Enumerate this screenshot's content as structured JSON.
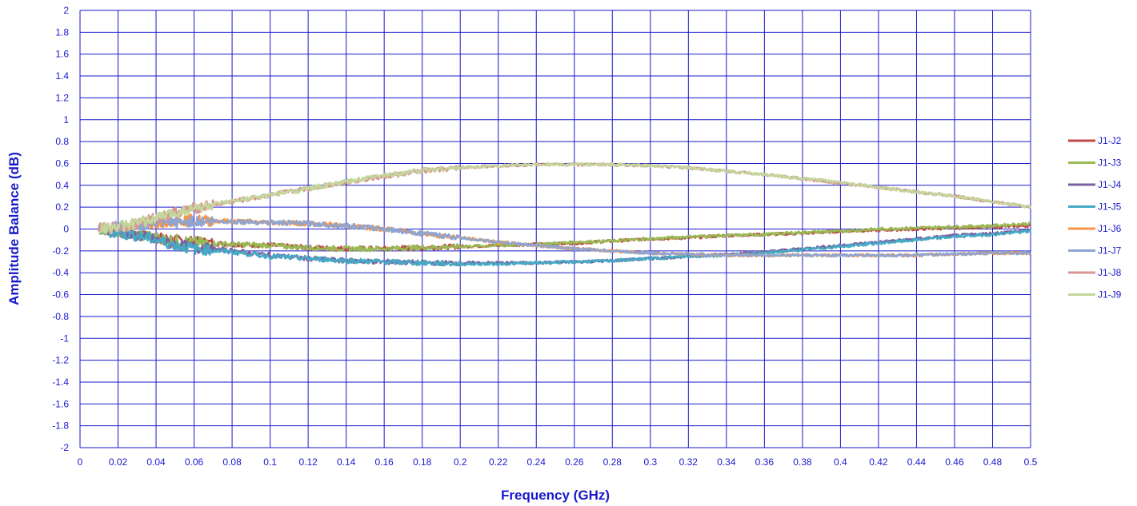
{
  "chart_data": {
    "type": "line",
    "title": "",
    "xlabel": "Frequency (GHz)",
    "ylabel": "Amplitude Balance (dB)",
    "xlim": [
      0,
      0.5
    ],
    "ylim": [
      -2,
      2
    ],
    "x_ticks": [
      "0",
      "0.02",
      "0.04",
      "0.06",
      "0.08",
      "0.1",
      "0.12",
      "0.14",
      "0.16",
      "0.18",
      "0.2",
      "0.22",
      "0.24",
      "0.26",
      "0.28",
      "0.3",
      "0.32",
      "0.34",
      "0.36",
      "0.38",
      "0.4",
      "0.42",
      "0.44",
      "0.46",
      "0.48",
      "0.5"
    ],
    "y_ticks": [
      "2",
      "1.8",
      "1.6",
      "1.4",
      "1.2",
      "1",
      "0.8",
      "0.6",
      "0.4",
      "0.2",
      "0",
      "-0.2",
      "-0.4",
      "-0.6",
      "-0.8",
      "-1",
      "-1.2",
      "-1.4",
      "-1.6",
      "-1.8",
      "-2"
    ],
    "grid": true,
    "grid_color": "#1a1acc",
    "legend_position": "right",
    "x": [
      0.01,
      0.02,
      0.03,
      0.04,
      0.05,
      0.06,
      0.08,
      0.1,
      0.12,
      0.14,
      0.16,
      0.18,
      0.2,
      0.22,
      0.24,
      0.26,
      0.28,
      0.3,
      0.32,
      0.34,
      0.36,
      0.38,
      0.4,
      0.42,
      0.44,
      0.46,
      0.48,
      0.5
    ],
    "series": [
      {
        "name": "J1-J2",
        "color": "#be4b48",
        "values": [
          0.0,
          -0.02,
          -0.05,
          -0.08,
          -0.1,
          -0.12,
          -0.14,
          -0.15,
          -0.17,
          -0.18,
          -0.18,
          -0.17,
          -0.16,
          -0.15,
          -0.14,
          -0.13,
          -0.11,
          -0.09,
          -0.08,
          -0.06,
          -0.05,
          -0.04,
          -0.02,
          -0.01,
          0.0,
          0.01,
          0.02,
          0.03
        ]
      },
      {
        "name": "J1-J3",
        "color": "#98b954",
        "values": [
          0.0,
          -0.02,
          -0.05,
          -0.08,
          -0.1,
          -0.12,
          -0.14,
          -0.15,
          -0.17,
          -0.18,
          -0.18,
          -0.17,
          -0.16,
          -0.15,
          -0.14,
          -0.12,
          -0.11,
          -0.09,
          -0.07,
          -0.06,
          -0.05,
          -0.03,
          -0.02,
          0.0,
          0.01,
          0.02,
          0.03,
          0.05
        ]
      },
      {
        "name": "J1-J4",
        "color": "#7d60a0",
        "values": [
          0.0,
          -0.04,
          -0.06,
          -0.1,
          -0.14,
          -0.17,
          -0.2,
          -0.24,
          -0.27,
          -0.29,
          -0.3,
          -0.31,
          -0.31,
          -0.31,
          -0.31,
          -0.3,
          -0.29,
          -0.27,
          -0.25,
          -0.23,
          -0.21,
          -0.18,
          -0.15,
          -0.12,
          -0.09,
          -0.06,
          -0.04,
          -0.01
        ]
      },
      {
        "name": "J1-J5",
        "color": "#46aac5",
        "values": [
          0.0,
          -0.04,
          -0.06,
          -0.1,
          -0.15,
          -0.18,
          -0.21,
          -0.25,
          -0.27,
          -0.29,
          -0.3,
          -0.31,
          -0.32,
          -0.32,
          -0.31,
          -0.3,
          -0.29,
          -0.27,
          -0.25,
          -0.24,
          -0.22,
          -0.19,
          -0.16,
          -0.13,
          -0.1,
          -0.07,
          -0.05,
          -0.02
        ]
      },
      {
        "name": "J1-J6",
        "color": "#f79646",
        "values": [
          0.0,
          0.02,
          0.04,
          0.06,
          0.08,
          0.08,
          0.07,
          0.06,
          0.05,
          0.03,
          0.0,
          -0.04,
          -0.08,
          -0.12,
          -0.15,
          -0.18,
          -0.2,
          -0.22,
          -0.23,
          -0.24,
          -0.24,
          -0.24,
          -0.24,
          -0.24,
          -0.24,
          -0.23,
          -0.22,
          -0.22
        ]
      },
      {
        "name": "J1-J7",
        "color": "#8ea5d1",
        "values": [
          0.0,
          0.02,
          0.03,
          0.05,
          0.06,
          0.07,
          0.07,
          0.06,
          0.05,
          0.03,
          0.0,
          -0.04,
          -0.08,
          -0.12,
          -0.15,
          -0.18,
          -0.2,
          -0.22,
          -0.23,
          -0.24,
          -0.24,
          -0.24,
          -0.24,
          -0.24,
          -0.24,
          -0.23,
          -0.22,
          -0.22
        ]
      },
      {
        "name": "J1-J8",
        "color": "#d99694",
        "values": [
          0.0,
          0.02,
          0.05,
          0.1,
          0.15,
          0.19,
          0.25,
          0.31,
          0.37,
          0.43,
          0.48,
          0.53,
          0.56,
          0.58,
          0.59,
          0.59,
          0.59,
          0.58,
          0.56,
          0.53,
          0.5,
          0.46,
          0.42,
          0.38,
          0.34,
          0.3,
          0.25,
          0.2
        ]
      },
      {
        "name": "J1-J9",
        "color": "#c3d69b",
        "values": [
          0.0,
          0.02,
          0.05,
          0.1,
          0.15,
          0.19,
          0.25,
          0.31,
          0.37,
          0.43,
          0.49,
          0.54,
          0.56,
          0.58,
          0.59,
          0.59,
          0.59,
          0.58,
          0.56,
          0.53,
          0.5,
          0.46,
          0.43,
          0.38,
          0.34,
          0.3,
          0.25,
          0.2
        ]
      }
    ]
  }
}
